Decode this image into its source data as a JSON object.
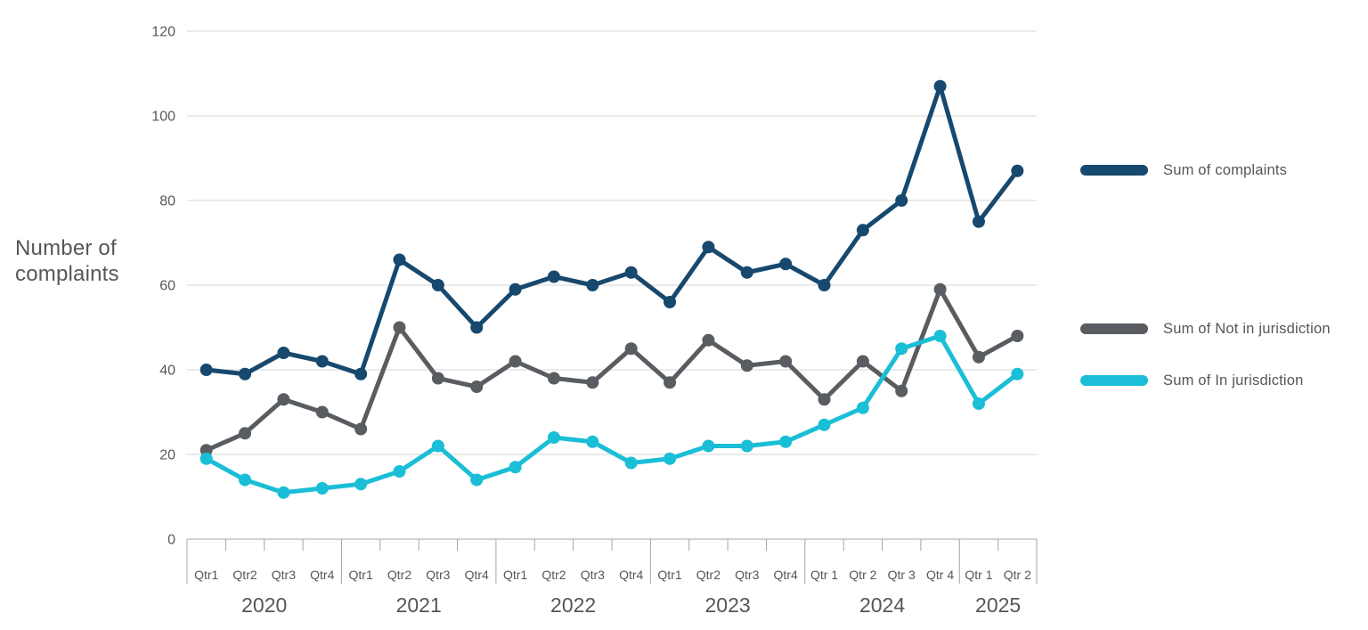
{
  "y_axis_title": [
    "Number of",
    "complaints"
  ],
  "legend": [
    {
      "label": "Sum of complaints",
      "color": "#17486e"
    },
    {
      "label": "Sum of Not in jurisdiction",
      "color": "#595d61"
    },
    {
      "label": "Sum of In jurisdiction",
      "color": "#1abed6"
    }
  ],
  "colors": {
    "complaints": "#17486e",
    "not_in_jurisdiction": "#595d61",
    "in_jurisdiction": "#1abed6",
    "axis_text": "#54575a",
    "tick_text": "#55585c",
    "gridline": "#d3d4d6",
    "axis_line": "#a2a5a7"
  },
  "chart_data": {
    "type": "line",
    "title": "",
    "xlabel": "",
    "ylabel": "Number of complaints",
    "ylim": [
      0,
      120
    ],
    "yticks": [
      0,
      20,
      40,
      60,
      80,
      100,
      120
    ],
    "grid": true,
    "legend_position": "right",
    "marker": "circle",
    "years": [
      {
        "label": "2020",
        "quarters": [
          "Qtr1",
          "Qtr2",
          "Qtr3",
          "Qtr4"
        ]
      },
      {
        "label": "2021",
        "quarters": [
          "Qtr1",
          "Qtr2",
          "Qtr3",
          "Qtr4"
        ]
      },
      {
        "label": "2022",
        "quarters": [
          "Qtr1",
          "Qtr2",
          "Qtr3",
          "Qtr4"
        ]
      },
      {
        "label": "2023",
        "quarters": [
          "Qtr1",
          "Qtr2",
          "Qtr3",
          "Qtr4"
        ]
      },
      {
        "label": "2024",
        "quarters": [
          "Qtr 1",
          "Qtr 2",
          "Qtr 3",
          "Qtr 4"
        ]
      },
      {
        "label": "2025",
        "quarters": [
          "Qtr 1",
          "Qtr 2"
        ]
      }
    ],
    "series": [
      {
        "name": "Sum of complaints",
        "color": "#17486e",
        "values": [
          40,
          39,
          44,
          42,
          39,
          66,
          60,
          50,
          59,
          62,
          60,
          63,
          56,
          69,
          63,
          65,
          60,
          73,
          80,
          107,
          75,
          87
        ]
      },
      {
        "name": "Sum of Not in jurisdiction",
        "color": "#595d61",
        "values": [
          21,
          25,
          33,
          30,
          26,
          50,
          38,
          36,
          42,
          38,
          37,
          45,
          37,
          47,
          41,
          42,
          33,
          42,
          35,
          59,
          43,
          48
        ]
      },
      {
        "name": "Sum of In jurisdiction",
        "color": "#1abed6",
        "values": [
          19,
          14,
          11,
          12,
          13,
          16,
          22,
          14,
          17,
          24,
          23,
          18,
          19,
          22,
          22,
          23,
          27,
          31,
          45,
          48,
          32,
          39
        ]
      }
    ]
  }
}
